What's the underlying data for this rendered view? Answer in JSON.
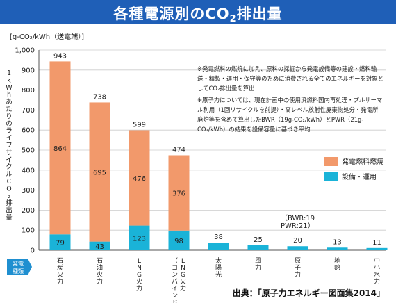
{
  "title": {
    "main": "各種電源別のCO",
    "sub": "2",
    "tail": "排出量"
  },
  "unit_label": "[g-CO₂/kWh（送電端）]",
  "y_axis_title": "1kWhあたりのライフサイクルCO₂排出量",
  "category_axis_title": "発電種類",
  "notes": [
    "※発電燃料の燃焼に加え、原料の採掘から発電設備等の建設・燃料輸送・精製・運用・保守等のために消費される全てのエネルギーを対象としてCO₂排出量を算出",
    "※原子力については、現在計画中の使用済燃料国内再処理・プルサーマル利用（1回リサイクルを前提）・高レベル放射性廃棄物処分・発電所廃炉等を含めて算出したBWR（19g-CO₂/kWh）とPWR（21g-CO₂/kWh）の結果を設備容量に基づき平均"
  ],
  "bwr_pwr_note": [
    "（BWR:19",
    " PWR:21）"
  ],
  "source": "出典：「原子力エネルギー図面集2014」",
  "colors": {
    "header": "#1f5fb7",
    "fuel": "#f2996b",
    "operation": "#1ab3d8",
    "axis_marker": "#1f8fd0"
  },
  "chart_data": {
    "type": "bar",
    "stacked": true,
    "categories": [
      "石炭火力",
      "石油火力",
      "LNG火力",
      "LNG火力（コンバインド）",
      "太陽光",
      "風力",
      "原子力",
      "地熱",
      "中小水力"
    ],
    "categories_display": [
      "石炭火力",
      "石油火力",
      "LNG火力",
      "LNG火力\n（コンバインド）",
      "太陽光",
      "風力",
      "原子力",
      "地熱",
      "中小水力"
    ],
    "series": [
      {
        "name": "設備・運用",
        "values": [
          79,
          43,
          123,
          98,
          38,
          25,
          20,
          13,
          11
        ]
      },
      {
        "name": "発電燃料燃焼",
        "values": [
          864,
          695,
          476,
          376,
          0,
          0,
          0,
          0,
          0
        ]
      }
    ],
    "totals": [
      943,
      738,
      599,
      474,
      38,
      25,
      20,
      13,
      11
    ],
    "ylabel": "1kWhあたりのライフサイクルCO₂排出量",
    "ylim": [
      0,
      1000
    ],
    "yticks": [
      0,
      100,
      200,
      300,
      400,
      500,
      600,
      700,
      800,
      900,
      "1,000"
    ],
    "legend": [
      "発電燃料燃焼",
      "設備・運用"
    ],
    "legend_position": "right",
    "grid": true
  }
}
